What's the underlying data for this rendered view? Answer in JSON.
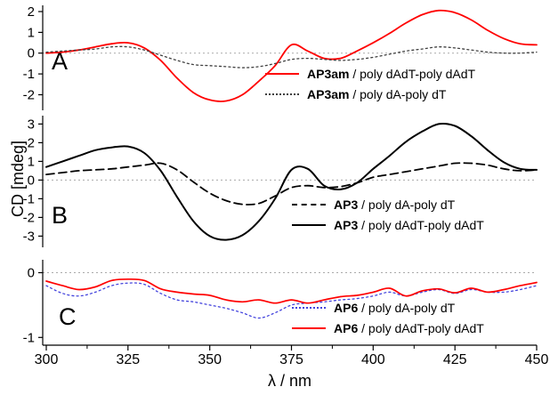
{
  "figure": {
    "xlabel": "λ / nm",
    "ylabel": "CD [mdeg]",
    "x_range": [
      300,
      450
    ],
    "x_ticks": [
      300,
      325,
      350,
      375,
      400,
      425,
      450
    ],
    "background": "#ffffff",
    "zero_line_color": "#aaaaaa",
    "axis_color": "#000000"
  },
  "chart_data": [
    {
      "type": "line",
      "panel": "A",
      "ylim": [
        -2.75,
        2.3
      ],
      "yticks": [
        2,
        1,
        0,
        -1,
        -2
      ],
      "grid": false,
      "legend_position": "inside-right-bottom",
      "x": [
        300,
        305,
        310,
        315,
        320,
        325,
        330,
        335,
        340,
        345,
        350,
        355,
        360,
        365,
        370,
        375,
        380,
        385,
        390,
        395,
        400,
        405,
        410,
        415,
        420,
        425,
        430,
        435,
        440,
        445,
        450
      ],
      "series": [
        {
          "name": "AP3am",
          "target": " / poly dAdT-poly dAdT",
          "color": "#ff0000",
          "style": "solid",
          "width": 1.8,
          "values": [
            0.0,
            0.05,
            0.15,
            0.3,
            0.45,
            0.5,
            0.25,
            -0.35,
            -1.2,
            -1.9,
            -2.25,
            -2.3,
            -2.0,
            -1.35,
            -0.6,
            0.4,
            0.1,
            -0.25,
            -0.25,
            0.1,
            0.5,
            0.95,
            1.45,
            1.85,
            2.05,
            1.95,
            1.6,
            1.1,
            0.7,
            0.45,
            0.4
          ]
        },
        {
          "name": "AP3am",
          "target": " / poly dA-poly dT",
          "color": "#404040",
          "style": "dotted",
          "width": 1.3,
          "values": [
            0.05,
            0.1,
            0.15,
            0.2,
            0.3,
            0.3,
            0.15,
            -0.1,
            -0.35,
            -0.55,
            -0.6,
            -0.65,
            -0.7,
            -0.65,
            -0.5,
            -0.3,
            -0.25,
            -0.3,
            -0.35,
            -0.3,
            -0.2,
            -0.05,
            0.1,
            0.2,
            0.3,
            0.25,
            0.15,
            0.05,
            0.0,
            0.0,
            0.05
          ]
        }
      ]
    },
    {
      "type": "line",
      "panel": "B",
      "ylim": [
        -3.6,
        3.45
      ],
      "yticks": [
        3,
        2,
        1,
        0,
        -1,
        -2,
        -3
      ],
      "grid": false,
      "legend_position": "inside-right-bottom",
      "x": [
        300,
        305,
        310,
        315,
        320,
        325,
        330,
        335,
        340,
        345,
        350,
        355,
        360,
        365,
        370,
        375,
        380,
        385,
        390,
        395,
        400,
        405,
        410,
        415,
        420,
        425,
        430,
        435,
        440,
        445,
        450
      ],
      "series": [
        {
          "name": "AP3",
          "target": " / poly dA-poly dT",
          "color": "#000000",
          "style": "dashed",
          "width": 1.8,
          "values": [
            0.3,
            0.4,
            0.5,
            0.55,
            0.6,
            0.7,
            0.8,
            0.9,
            0.55,
            -0.1,
            -0.7,
            -1.1,
            -1.3,
            -1.25,
            -0.85,
            -0.4,
            -0.3,
            -0.4,
            -0.35,
            -0.15,
            0.15,
            0.3,
            0.45,
            0.6,
            0.75,
            0.9,
            0.9,
            0.8,
            0.6,
            0.5,
            0.55
          ]
        },
        {
          "name": "AP3",
          "target": " / poly dAdT-poly dAdT",
          "color": "#000000",
          "style": "solid",
          "width": 2.0,
          "values": [
            0.7,
            1.0,
            1.3,
            1.6,
            1.75,
            1.8,
            1.45,
            0.5,
            -0.9,
            -2.2,
            -3.0,
            -3.2,
            -2.95,
            -2.2,
            -1.0,
            0.55,
            0.6,
            -0.3,
            -0.5,
            -0.15,
            0.6,
            1.3,
            2.05,
            2.6,
            3.0,
            2.9,
            2.35,
            1.6,
            0.95,
            0.6,
            0.55
          ]
        }
      ]
    },
    {
      "type": "line",
      "panel": "C",
      "ylim": [
        -1.12,
        0.2
      ],
      "yticks": [
        0,
        -1
      ],
      "grid": false,
      "legend_position": "inside-right-bottom",
      "x": [
        300,
        305,
        310,
        315,
        320,
        325,
        330,
        335,
        340,
        345,
        350,
        355,
        360,
        365,
        370,
        375,
        380,
        385,
        390,
        395,
        400,
        405,
        410,
        415,
        420,
        425,
        430,
        435,
        440,
        445,
        450
      ],
      "series": [
        {
          "name": "AP6",
          "target": " / poly dA-poly dT",
          "color": "#4444dd",
          "style": "dotted",
          "width": 1.3,
          "values": [
            -0.2,
            -0.32,
            -0.36,
            -0.3,
            -0.2,
            -0.16,
            -0.18,
            -0.32,
            -0.42,
            -0.45,
            -0.5,
            -0.55,
            -0.62,
            -0.7,
            -0.62,
            -0.5,
            -0.47,
            -0.45,
            -0.42,
            -0.4,
            -0.36,
            -0.3,
            -0.36,
            -0.3,
            -0.26,
            -0.32,
            -0.26,
            -0.3,
            -0.3,
            -0.26,
            -0.2
          ]
        },
        {
          "name": "AP6",
          "target": " / poly dAdT-poly dAdT",
          "color": "#ff0000",
          "style": "solid",
          "width": 1.7,
          "values": [
            -0.13,
            -0.2,
            -0.26,
            -0.22,
            -0.12,
            -0.1,
            -0.12,
            -0.25,
            -0.3,
            -0.33,
            -0.35,
            -0.42,
            -0.45,
            -0.42,
            -0.47,
            -0.42,
            -0.47,
            -0.42,
            -0.37,
            -0.35,
            -0.3,
            -0.24,
            -0.36,
            -0.28,
            -0.25,
            -0.31,
            -0.24,
            -0.3,
            -0.26,
            -0.2,
            -0.15
          ]
        }
      ]
    }
  ]
}
